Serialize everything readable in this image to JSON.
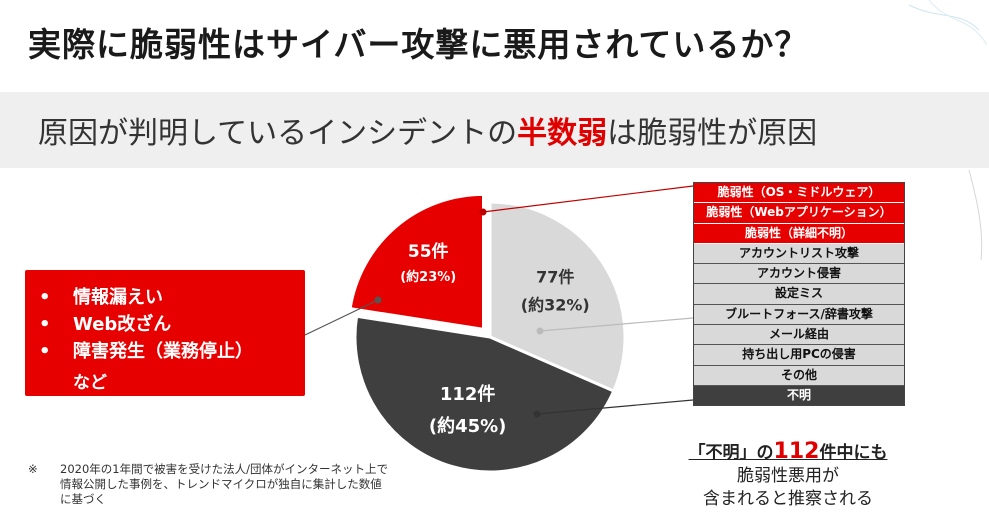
{
  "title": "実際に脆弱性はサイバー攻撃に悪用されているか？",
  "subtitle": {
    "before": "原因が判明しているインシデントの",
    "highlight": "半数弱",
    "after": "は脆弱性が原因"
  },
  "callout": {
    "items": [
      "情報漏えい",
      "Web改ざん",
      "障害発生（業務停止）"
    ],
    "bullet": "•",
    "etc": "など"
  },
  "colors": {
    "red": "#e60000",
    "light_gray": "#d9d9d9",
    "dark_gray": "#3f3f3f"
  },
  "chart_data": {
    "type": "pie",
    "slices": [
      {
        "count_label": "55件",
        "pct_label": "(約23%)",
        "value": 55,
        "percent": 23,
        "color": "#e60000",
        "exploded": true
      },
      {
        "count_label": "77件",
        "pct_label": "(約32%)",
        "value": 77,
        "percent": 32,
        "color": "#d9d9d9",
        "exploded": false
      },
      {
        "count_label": "112件",
        "pct_label": "(約45%)",
        "value": 112,
        "percent": 45,
        "color": "#3f3f3f",
        "exploded": false
      }
    ],
    "legend": [
      {
        "label": "脆弱性（OS・ミドルウェア）",
        "group": "red"
      },
      {
        "label": "脆弱性（Webアプリケーション）",
        "group": "red"
      },
      {
        "label": "脆弱性（詳細不明）",
        "group": "red"
      },
      {
        "label": "アカウントリスト攻撃",
        "group": "gray"
      },
      {
        "label": "アカウント侵害",
        "group": "gray"
      },
      {
        "label": "設定ミス",
        "group": "gray"
      },
      {
        "label": "ブルートフォース/辞書攻撃",
        "group": "gray"
      },
      {
        "label": "メール経由",
        "group": "gray"
      },
      {
        "label": "持ち出し用PCの侵害",
        "group": "gray"
      },
      {
        "label": "その他",
        "group": "gray"
      },
      {
        "label": "不明",
        "group": "dark"
      }
    ]
  },
  "note": {
    "mark": "※",
    "text": "2020年の1年間で被害を受けた法人/団体がインターネット上で情報公開した事例を、トレンドマイクロが独自に集計した数値に基づく"
  },
  "bottom_message": {
    "line1_before": "「不明」の",
    "line1_num": "112",
    "line1_after": "件中にも",
    "line2": "脆弱性悪用が",
    "line3": "含まれると推察される"
  }
}
